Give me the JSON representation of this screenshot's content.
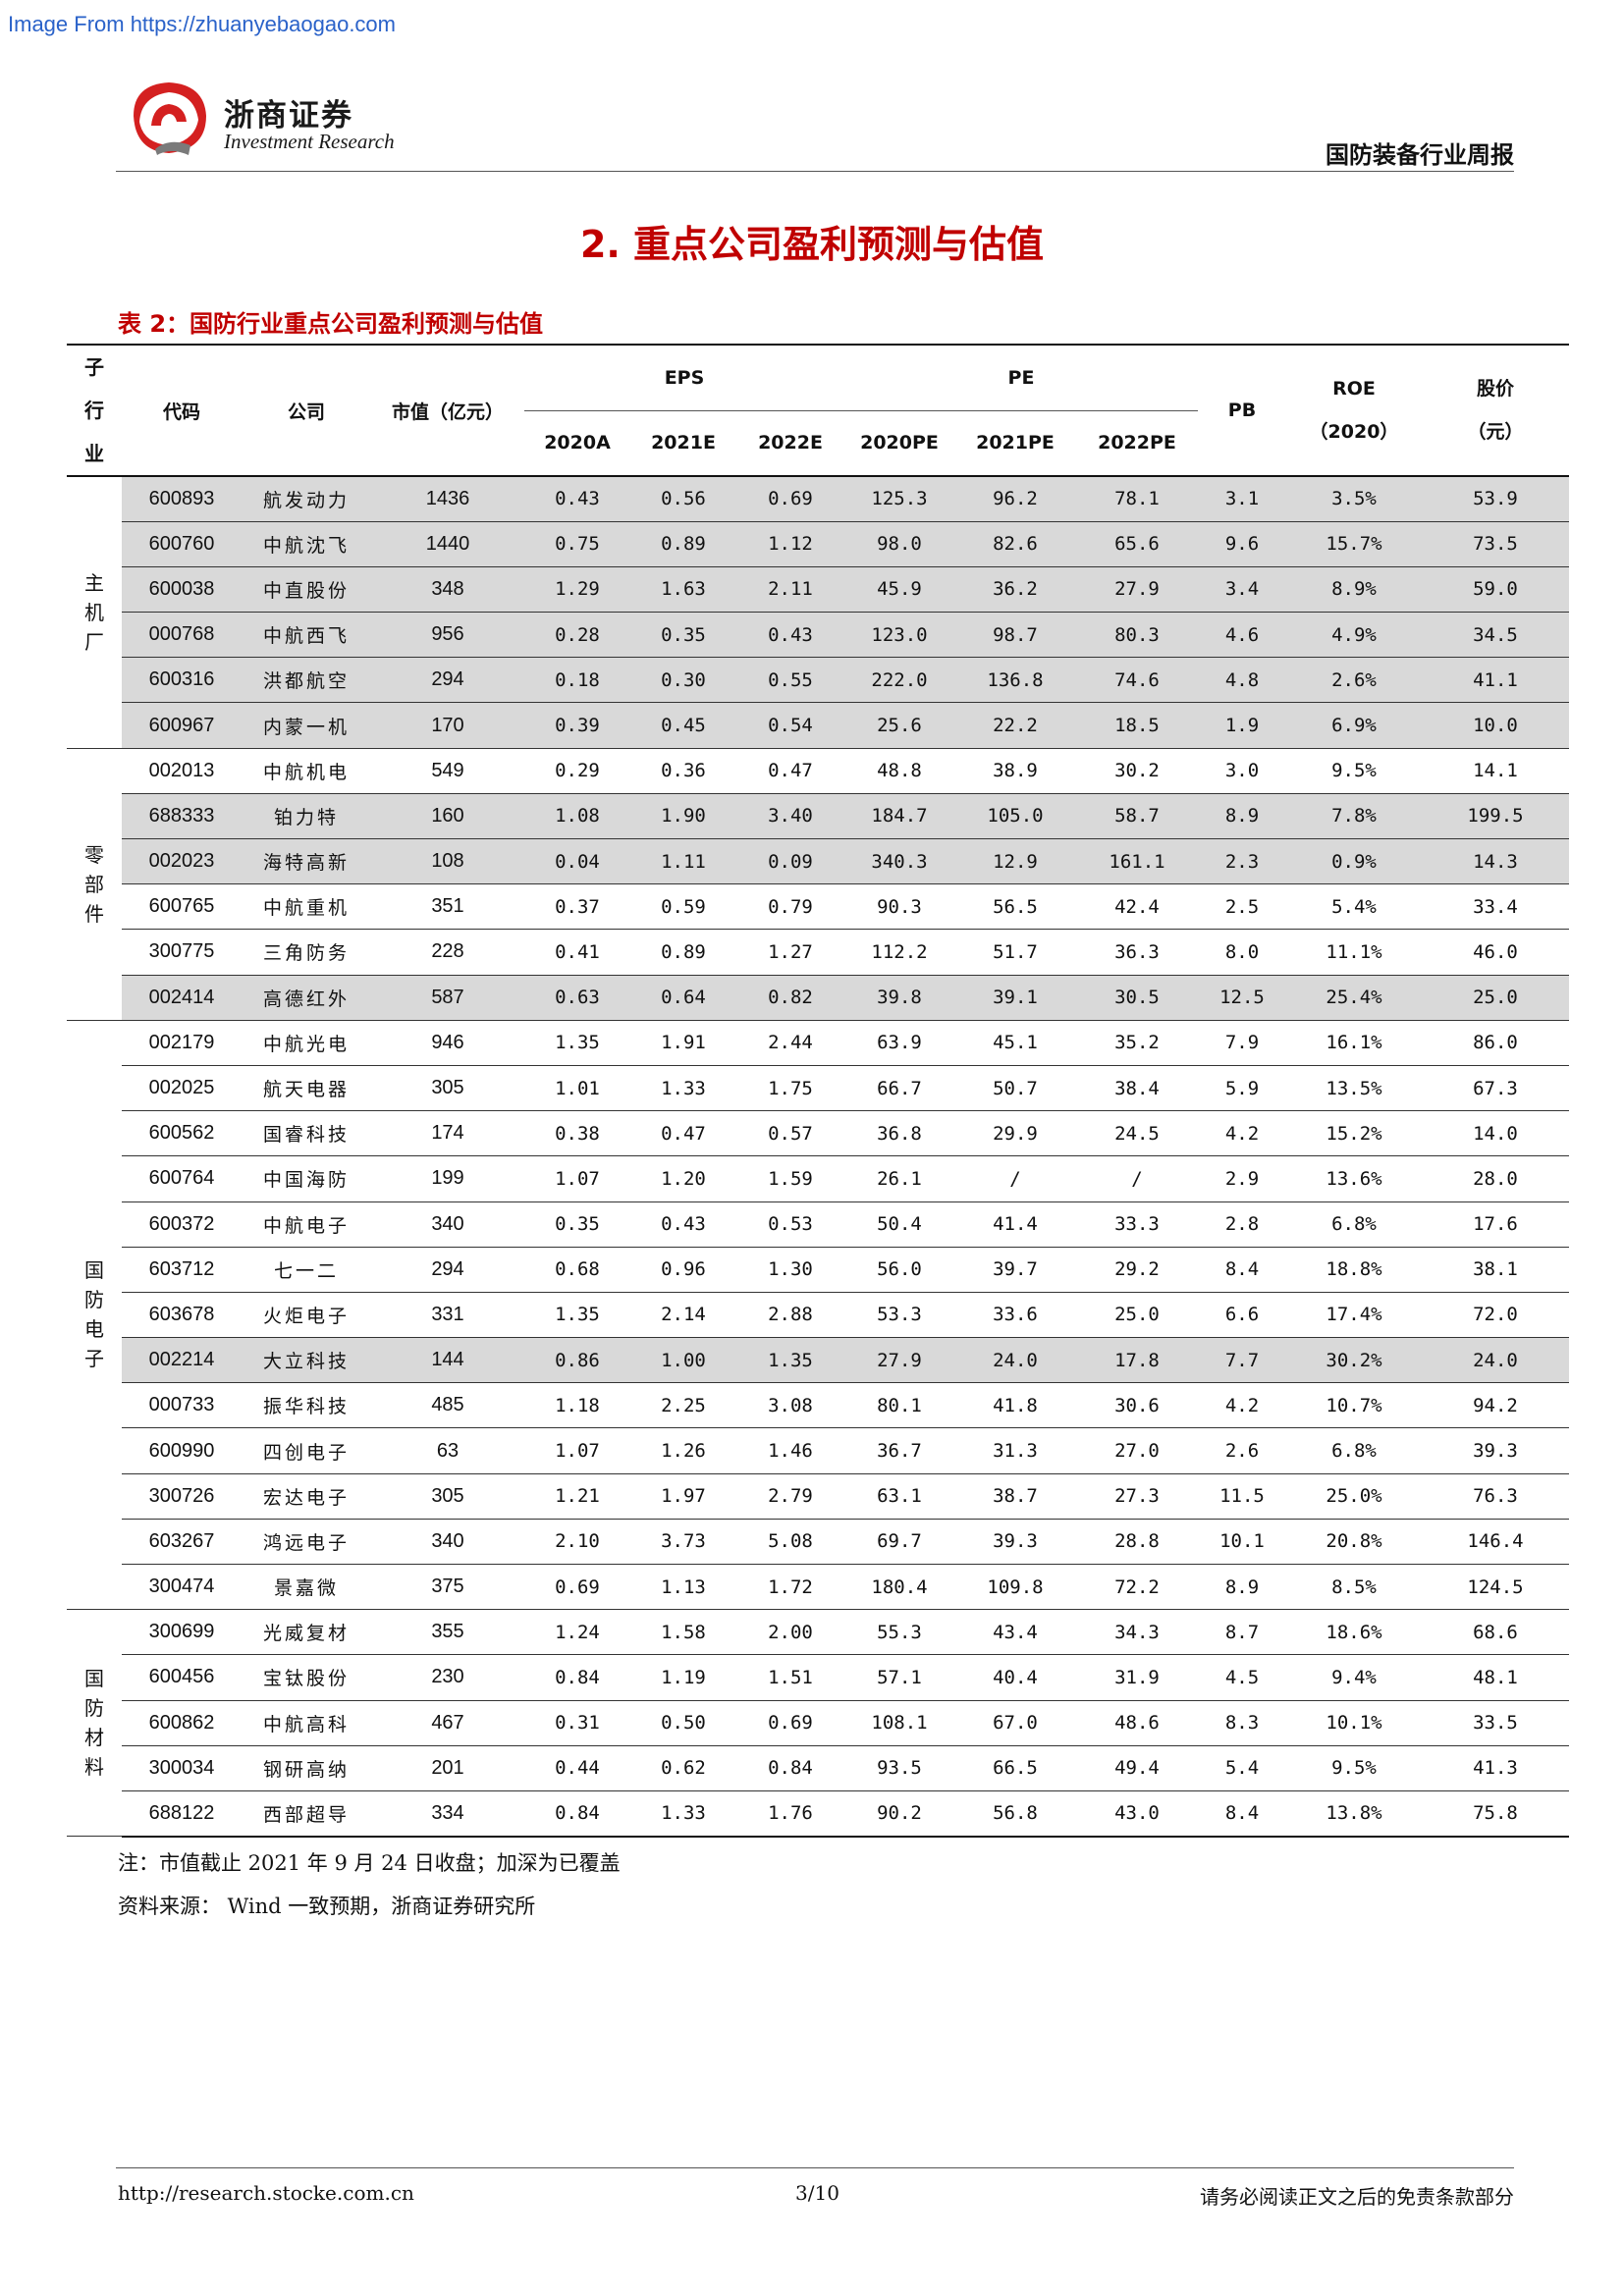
{
  "watermark": "Image From https://zhuanyebaogao.com",
  "header": {
    "brand_cn": "浙商证券",
    "brand_en": "Investment Research",
    "report_name": "国防装备行业周报"
  },
  "section_title": "2. 重点公司盈利预测与估值",
  "table": {
    "caption": "表 2：国防行业重点公司盈利预测与估值",
    "headers": {
      "subsector": [
        "子",
        "行",
        "业"
      ],
      "code": "代码",
      "company": "公司",
      "mcap": "市值（亿元）",
      "eps_group": "EPS",
      "pe_group": "PE",
      "eps_cols": [
        "2020A",
        "2021E",
        "2022E"
      ],
      "pe_cols": [
        "2020PE",
        "2021PE",
        "2022PE"
      ],
      "pb": "PB",
      "roe_line1": "ROE",
      "roe_line2": "（2020）",
      "price_line1": "股价",
      "price_line2": "（元）"
    },
    "groups": [
      {
        "sector_chars": [
          "主",
          "机",
          "厂"
        ],
        "rows": [
          {
            "code": "600893",
            "company": "航发动力",
            "mcap": "1436",
            "eps20": "0.43",
            "eps21": "0.56",
            "eps22": "0.69",
            "pe20": "125.3",
            "pe21": "96.2",
            "pe22": "78.1",
            "pb": "3.1",
            "roe": "3.5%",
            "price": "53.9",
            "shaded": true
          },
          {
            "code": "600760",
            "company": "中航沈飞",
            "mcap": "1440",
            "eps20": "0.75",
            "eps21": "0.89",
            "eps22": "1.12",
            "pe20": "98.0",
            "pe21": "82.6",
            "pe22": "65.6",
            "pb": "9.6",
            "roe": "15.7%",
            "price": "73.5",
            "shaded": true
          },
          {
            "code": "600038",
            "company": "中直股份",
            "mcap": "348",
            "eps20": "1.29",
            "eps21": "1.63",
            "eps22": "2.11",
            "pe20": "45.9",
            "pe21": "36.2",
            "pe22": "27.9",
            "pb": "3.4",
            "roe": "8.9%",
            "price": "59.0",
            "shaded": true
          },
          {
            "code": "000768",
            "company": "中航西飞",
            "mcap": "956",
            "eps20": "0.28",
            "eps21": "0.35",
            "eps22": "0.43",
            "pe20": "123.0",
            "pe21": "98.7",
            "pe22": "80.3",
            "pb": "4.6",
            "roe": "4.9%",
            "price": "34.5",
            "shaded": true
          },
          {
            "code": "600316",
            "company": "洪都航空",
            "mcap": "294",
            "eps20": "0.18",
            "eps21": "0.30",
            "eps22": "0.55",
            "pe20": "222.0",
            "pe21": "136.8",
            "pe22": "74.6",
            "pb": "4.8",
            "roe": "2.6%",
            "price": "41.1",
            "shaded": true
          },
          {
            "code": "600967",
            "company": "内蒙一机",
            "mcap": "170",
            "eps20": "0.39",
            "eps21": "0.45",
            "eps22": "0.54",
            "pe20": "25.6",
            "pe21": "22.2",
            "pe22": "18.5",
            "pb": "1.9",
            "roe": "6.9%",
            "price": "10.0",
            "shaded": true
          }
        ]
      },
      {
        "sector_chars": [
          "零",
          "部",
          "件"
        ],
        "rows": [
          {
            "code": "002013",
            "company": "中航机电",
            "mcap": "549",
            "eps20": "0.29",
            "eps21": "0.36",
            "eps22": "0.47",
            "pe20": "48.8",
            "pe21": "38.9",
            "pe22": "30.2",
            "pb": "3.0",
            "roe": "9.5%",
            "price": "14.1",
            "shaded": false
          },
          {
            "code": "688333",
            "company": "铂力特",
            "mcap": "160",
            "eps20": "1.08",
            "eps21": "1.90",
            "eps22": "3.40",
            "pe20": "184.7",
            "pe21": "105.0",
            "pe22": "58.7",
            "pb": "8.9",
            "roe": "7.8%",
            "price": "199.5",
            "shaded": true
          },
          {
            "code": "002023",
            "company": "海特高新",
            "mcap": "108",
            "eps20": "0.04",
            "eps21": "1.11",
            "eps22": "0.09",
            "pe20": "340.3",
            "pe21": "12.9",
            "pe22": "161.1",
            "pb": "2.3",
            "roe": "0.9%",
            "price": "14.3",
            "shaded": true
          },
          {
            "code": "600765",
            "company": "中航重机",
            "mcap": "351",
            "eps20": "0.37",
            "eps21": "0.59",
            "eps22": "0.79",
            "pe20": "90.3",
            "pe21": "56.5",
            "pe22": "42.4",
            "pb": "2.5",
            "roe": "5.4%",
            "price": "33.4",
            "shaded": false
          },
          {
            "code": "300775",
            "company": "三角防务",
            "mcap": "228",
            "eps20": "0.41",
            "eps21": "0.89",
            "eps22": "1.27",
            "pe20": "112.2",
            "pe21": "51.7",
            "pe22": "36.3",
            "pb": "8.0",
            "roe": "11.1%",
            "price": "46.0",
            "shaded": false
          },
          {
            "code": "002414",
            "company": "高德红外",
            "mcap": "587",
            "eps20": "0.63",
            "eps21": "0.64",
            "eps22": "0.82",
            "pe20": "39.8",
            "pe21": "39.1",
            "pe22": "30.5",
            "pb": "12.5",
            "roe": "25.4%",
            "price": "25.0",
            "shaded": true
          }
        ]
      },
      {
        "sector_chars": [
          "国",
          "防",
          "电",
          "子"
        ],
        "rows": [
          {
            "code": "002179",
            "company": "中航光电",
            "mcap": "946",
            "eps20": "1.35",
            "eps21": "1.91",
            "eps22": "2.44",
            "pe20": "63.9",
            "pe21": "45.1",
            "pe22": "35.2",
            "pb": "7.9",
            "roe": "16.1%",
            "price": "86.0",
            "shaded": false
          },
          {
            "code": "002025",
            "company": "航天电器",
            "mcap": "305",
            "eps20": "1.01",
            "eps21": "1.33",
            "eps22": "1.75",
            "pe20": "66.7",
            "pe21": "50.7",
            "pe22": "38.4",
            "pb": "5.9",
            "roe": "13.5%",
            "price": "67.3",
            "shaded": false
          },
          {
            "code": "600562",
            "company": "国睿科技",
            "mcap": "174",
            "eps20": "0.38",
            "eps21": "0.47",
            "eps22": "0.57",
            "pe20": "36.8",
            "pe21": "29.9",
            "pe22": "24.5",
            "pb": "4.2",
            "roe": "15.2%",
            "price": "14.0",
            "shaded": false
          },
          {
            "code": "600764",
            "company": "中国海防",
            "mcap": "199",
            "eps20": "1.07",
            "eps21": "1.20",
            "eps22": "1.59",
            "pe20": "26.1",
            "pe21": "/",
            "pe22": "/",
            "pb": "2.9",
            "roe": "13.6%",
            "price": "28.0",
            "shaded": false
          },
          {
            "code": "600372",
            "company": "中航电子",
            "mcap": "340",
            "eps20": "0.35",
            "eps21": "0.43",
            "eps22": "0.53",
            "pe20": "50.4",
            "pe21": "41.4",
            "pe22": "33.3",
            "pb": "2.8",
            "roe": "6.8%",
            "price": "17.6",
            "shaded": false
          },
          {
            "code": "603712",
            "company": "七一二",
            "mcap": "294",
            "eps20": "0.68",
            "eps21": "0.96",
            "eps22": "1.30",
            "pe20": "56.0",
            "pe21": "39.7",
            "pe22": "29.2",
            "pb": "8.4",
            "roe": "18.8%",
            "price": "38.1",
            "shaded": false
          },
          {
            "code": "603678",
            "company": "火炬电子",
            "mcap": "331",
            "eps20": "1.35",
            "eps21": "2.14",
            "eps22": "2.88",
            "pe20": "53.3",
            "pe21": "33.6",
            "pe22": "25.0",
            "pb": "6.6",
            "roe": "17.4%",
            "price": "72.0",
            "shaded": false
          },
          {
            "code": "002214",
            "company": "大立科技",
            "mcap": "144",
            "eps20": "0.86",
            "eps21": "1.00",
            "eps22": "1.35",
            "pe20": "27.9",
            "pe21": "24.0",
            "pe22": "17.8",
            "pb": "7.7",
            "roe": "30.2%",
            "price": "24.0",
            "shaded": true
          },
          {
            "code": "000733",
            "company": "振华科技",
            "mcap": "485",
            "eps20": "1.18",
            "eps21": "2.25",
            "eps22": "3.08",
            "pe20": "80.1",
            "pe21": "41.8",
            "pe22": "30.6",
            "pb": "4.2",
            "roe": "10.7%",
            "price": "94.2",
            "shaded": false
          },
          {
            "code": "600990",
            "company": "四创电子",
            "mcap": "63",
            "eps20": "1.07",
            "eps21": "1.26",
            "eps22": "1.46",
            "pe20": "36.7",
            "pe21": "31.3",
            "pe22": "27.0",
            "pb": "2.6",
            "roe": "6.8%",
            "price": "39.3",
            "shaded": false
          },
          {
            "code": "300726",
            "company": "宏达电子",
            "mcap": "305",
            "eps20": "1.21",
            "eps21": "1.97",
            "eps22": "2.79",
            "pe20": "63.1",
            "pe21": "38.7",
            "pe22": "27.3",
            "pb": "11.5",
            "roe": "25.0%",
            "price": "76.3",
            "shaded": false
          },
          {
            "code": "603267",
            "company": "鸿远电子",
            "mcap": "340",
            "eps20": "2.10",
            "eps21": "3.73",
            "eps22": "5.08",
            "pe20": "69.7",
            "pe21": "39.3",
            "pe22": "28.8",
            "pb": "10.1",
            "roe": "20.8%",
            "price": "146.4",
            "shaded": false
          },
          {
            "code": "300474",
            "company": "景嘉微",
            "mcap": "375",
            "eps20": "0.69",
            "eps21": "1.13",
            "eps22": "1.72",
            "pe20": "180.4",
            "pe21": "109.8",
            "pe22": "72.2",
            "pb": "8.9",
            "roe": "8.5%",
            "price": "124.5",
            "shaded": false
          }
        ]
      },
      {
        "sector_chars": [
          "国",
          "防",
          "材",
          "料"
        ],
        "rows": [
          {
            "code": "300699",
            "company": "光威复材",
            "mcap": "355",
            "eps20": "1.24",
            "eps21": "1.58",
            "eps22": "2.00",
            "pe20": "55.3",
            "pe21": "43.4",
            "pe22": "34.3",
            "pb": "8.7",
            "roe": "18.6%",
            "price": "68.6",
            "shaded": false
          },
          {
            "code": "600456",
            "company": "宝钛股份",
            "mcap": "230",
            "eps20": "0.84",
            "eps21": "1.19",
            "eps22": "1.51",
            "pe20": "57.1",
            "pe21": "40.4",
            "pe22": "31.9",
            "pb": "4.5",
            "roe": "9.4%",
            "price": "48.1",
            "shaded": false
          },
          {
            "code": "600862",
            "company": "中航高科",
            "mcap": "467",
            "eps20": "0.31",
            "eps21": "0.50",
            "eps22": "0.69",
            "pe20": "108.1",
            "pe21": "67.0",
            "pe22": "48.6",
            "pb": "8.3",
            "roe": "10.1%",
            "price": "33.5",
            "shaded": false
          },
          {
            "code": "300034",
            "company": "钢研高纳",
            "mcap": "201",
            "eps20": "0.44",
            "eps21": "0.62",
            "eps22": "0.84",
            "pe20": "93.5",
            "pe21": "66.5",
            "pe22": "49.4",
            "pb": "5.4",
            "roe": "9.5%",
            "price": "41.3",
            "shaded": false
          },
          {
            "code": "688122",
            "company": "西部超导",
            "mcap": "334",
            "eps20": "0.84",
            "eps21": "1.33",
            "eps22": "1.76",
            "pe20": "90.2",
            "pe21": "56.8",
            "pe22": "43.0",
            "pb": "8.4",
            "roe": "13.8%",
            "price": "75.8",
            "shaded": false
          }
        ]
      }
    ]
  },
  "notes": {
    "note1": "注：市值截止 2021 年 9 月 24 日收盘；加深为已覆盖",
    "note2": "资料来源： Wind 一致预期，浙商证券研究所"
  },
  "footer": {
    "url": "http://research.stocke.com.cn",
    "page": "3/10",
    "disclaimer": "请务必阅读正文之后的免责条款部分"
  },
  "colors": {
    "accent_red": "#c00000",
    "shade_gray": "#d9d9d9",
    "watermark_blue": "#2a62c9"
  }
}
